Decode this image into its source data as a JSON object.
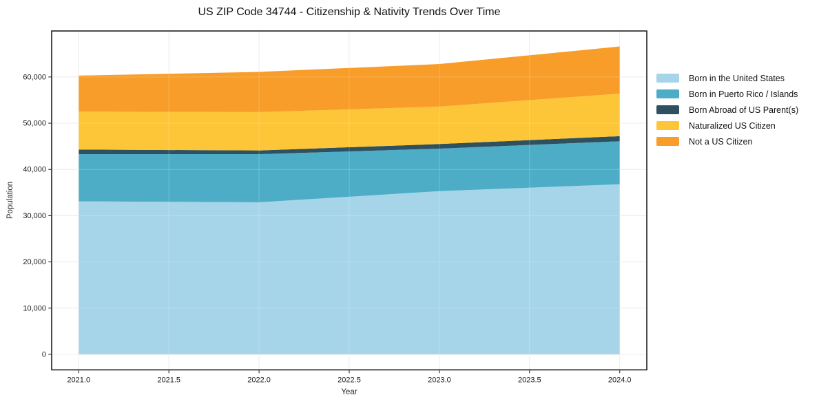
{
  "chart_data": {
    "type": "area",
    "stacked": true,
    "title": "US ZIP Code 34744 - Citizenship & Nativity Trends Over Time",
    "xlabel": "Year",
    "ylabel": "Population",
    "x": [
      2021,
      2022,
      2023,
      2024
    ],
    "series": [
      {
        "name": "Born in the United States",
        "color": "#A1D3E8",
        "values": [
          33100,
          32900,
          35300,
          36800
        ]
      },
      {
        "name": "Born in Puerto Rico / Islands",
        "color": "#43A9C4",
        "values": [
          10200,
          10400,
          9200,
          9300
        ]
      },
      {
        "name": "Born Abroad of US Parent(s)",
        "color": "#234756",
        "values": [
          1000,
          800,
          1000,
          1100
        ]
      },
      {
        "name": "Naturalized US Citizen",
        "color": "#FCC32D",
        "values": [
          8200,
          8300,
          8100,
          9200
        ]
      },
      {
        "name": "Not a US Citizen",
        "color": "#F8981D",
        "values": [
          7800,
          8700,
          9200,
          10200
        ]
      }
    ],
    "stacked_totals": [
      60300,
      61100,
      62800,
      66600
    ],
    "xticks": [
      2021.0,
      2021.5,
      2022.0,
      2022.5,
      2023.0,
      2023.5,
      2024.0
    ],
    "xtick_labels": [
      "2021.0",
      "2021.5",
      "2022.0",
      "2022.5",
      "2023.0",
      "2023.5",
      "2024.0"
    ],
    "yticks": [
      0,
      10000,
      20000,
      30000,
      40000,
      50000,
      60000
    ],
    "ytick_labels": [
      "0",
      "10,000",
      "20,000",
      "30,000",
      "40,000",
      "50,000",
      "60,000"
    ],
    "xlim": [
      2020.85,
      2024.15
    ],
    "ylim": [
      -3350,
      69950
    ],
    "grid": true,
    "legend_position": "right-outside",
    "fill_opacity": 0.95,
    "grid_color": "#e7e7e7",
    "spine_color": "#111111",
    "tick_label_color": "#1a1a1a"
  }
}
